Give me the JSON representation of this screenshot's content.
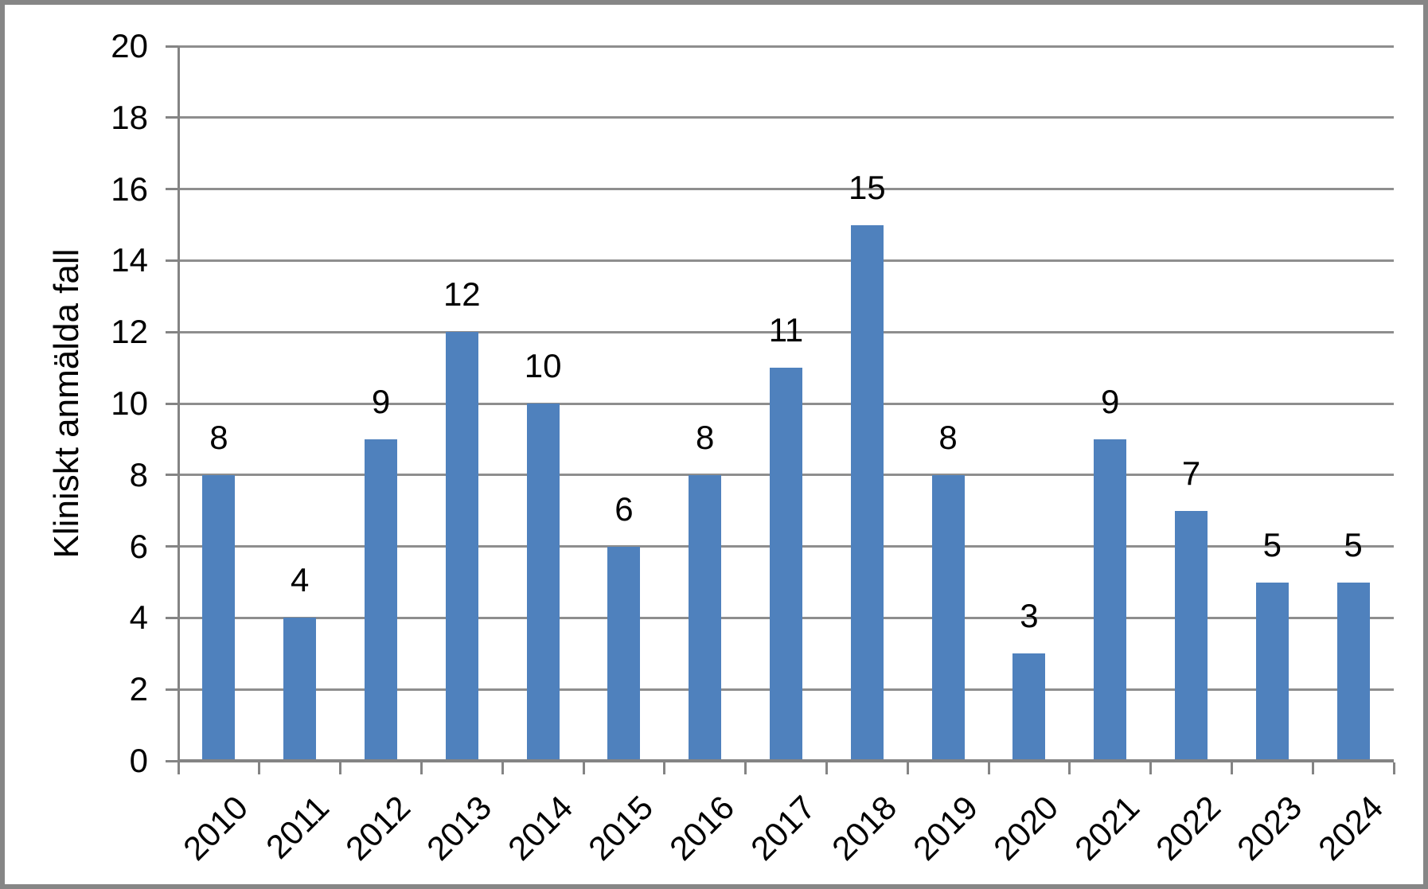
{
  "chart_data": {
    "type": "bar",
    "categories": [
      "2010",
      "2011",
      "2012",
      "2013",
      "2014",
      "2015",
      "2016",
      "2017",
      "2018",
      "2019",
      "2020",
      "2021",
      "2022",
      "2023",
      "2024"
    ],
    "values": [
      8,
      4,
      9,
      12,
      10,
      6,
      8,
      11,
      15,
      8,
      3,
      9,
      7,
      5,
      5
    ],
    "data_labels": [
      "8",
      "4",
      "9",
      "12",
      "10",
      "6",
      "8",
      "11",
      "15",
      "8",
      "3",
      "9",
      "7",
      "5",
      "5"
    ],
    "title": "",
    "xlabel": "",
    "ylabel": "Kliniskt anmälda fall",
    "ylim": [
      0,
      20
    ],
    "ytick_step": 2,
    "yticks": [
      "0",
      "2",
      "4",
      "6",
      "8",
      "10",
      "12",
      "14",
      "16",
      "18",
      "20"
    ],
    "grid": true,
    "legend": "none",
    "x_label_rotation_deg": 45,
    "colors": {
      "bar_fill": "#4F81BD",
      "gridline": "#8E8E8E",
      "axis_line": "#848484",
      "frame_border": "#868686",
      "text": "#000000",
      "background": "#FFFFFF"
    }
  }
}
